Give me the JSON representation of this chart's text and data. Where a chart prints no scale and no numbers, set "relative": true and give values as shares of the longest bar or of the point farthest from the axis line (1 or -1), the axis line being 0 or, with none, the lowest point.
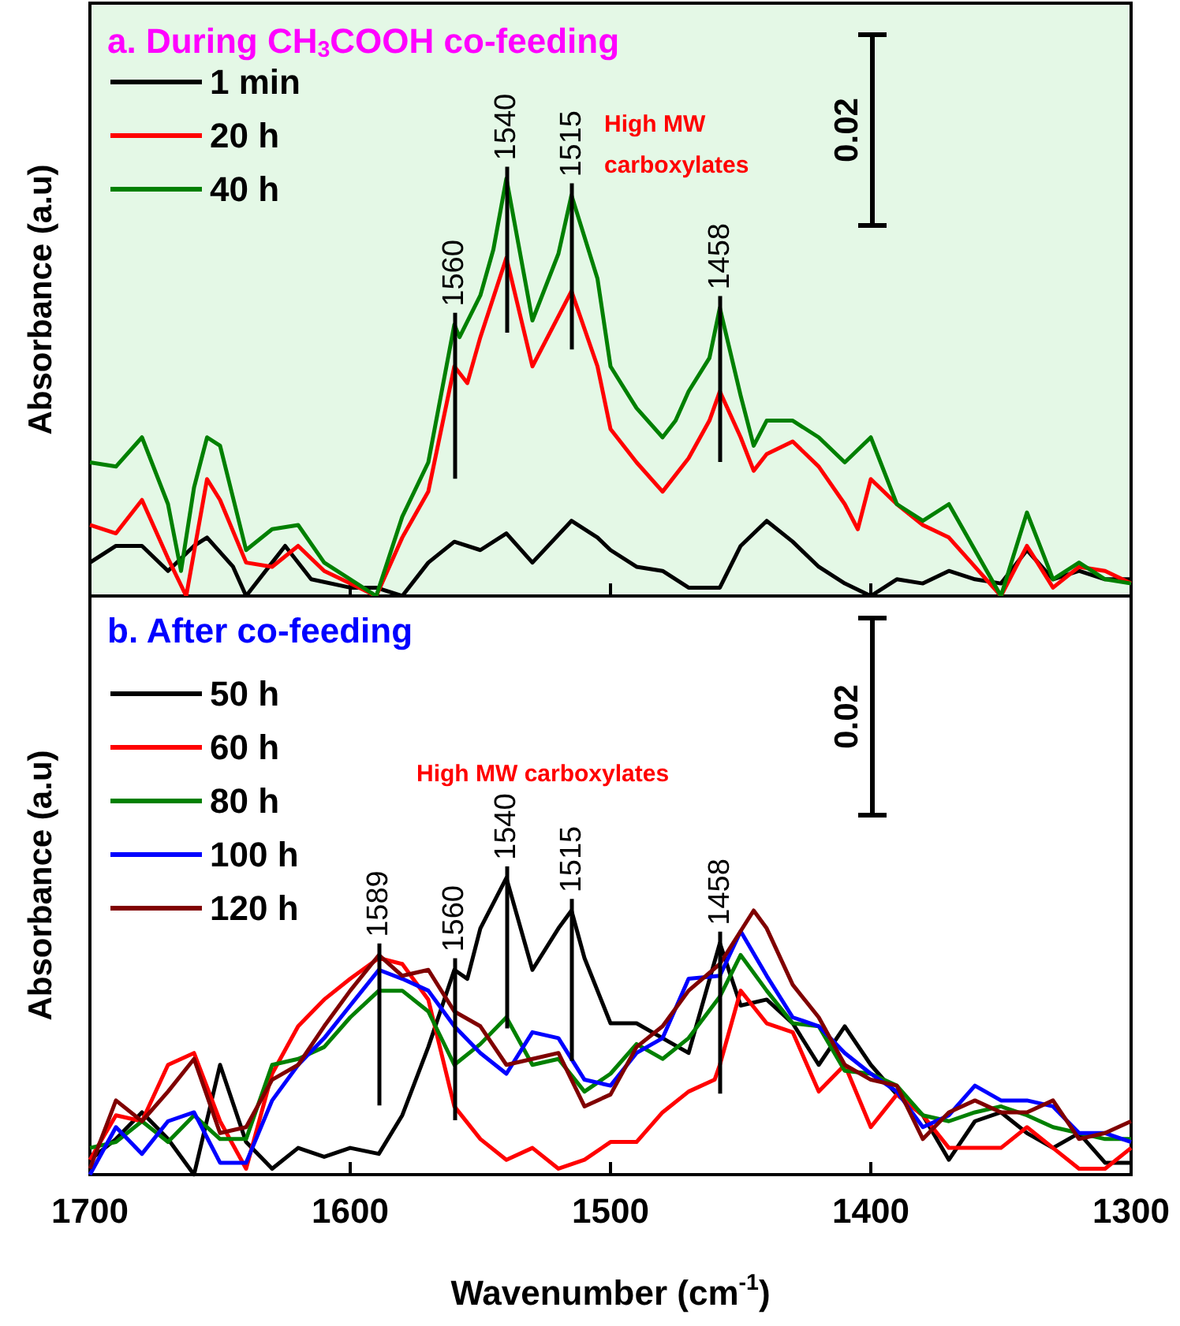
{
  "chart_data": [
    {
      "type": "line",
      "title": "a. During CH$_{3}$COOH co-feeding",
      "ylabel": "Absorbance (a.u)",
      "relative": true,
      "xlim": [
        1700,
        1300
      ],
      "xticks": [
        1700,
        1600,
        1500,
        1400,
        1300
      ],
      "tick_labels": false,
      "legend": "top left",
      "marker": "none",
      "grid": false,
      "series": [
        {
          "name": "1 min",
          "color": "#000000",
          "x": [
            1700,
            1690,
            1680,
            1670,
            1660,
            1655,
            1645,
            1640,
            1630,
            1625,
            1615,
            1600,
            1590,
            1580,
            1570,
            1560,
            1550,
            1540,
            1530,
            1515,
            1505,
            1500,
            1490,
            1480,
            1470,
            1458,
            1450,
            1440,
            1430,
            1420,
            1410,
            1400,
            1390,
            1380,
            1370,
            1360,
            1350,
            1340,
            1330,
            1320,
            1310,
            1300
          ],
          "values": [
            0.08,
            0.12,
            0.12,
            0.06,
            0.12,
            0.14,
            0.07,
            0,
            0.08,
            0.12,
            0.04,
            0.02,
            0.02,
            0,
            0.08,
            0.13,
            0.11,
            0.15,
            0.08,
            0.18,
            0.14,
            0.11,
            0.07,
            0.06,
            0.02,
            0.02,
            0.12,
            0.18,
            0.13,
            0.07,
            0.03,
            0,
            0.04,
            0.03,
            0.06,
            0.04,
            0.03,
            0.11,
            0.04,
            0.06,
            0.04,
            0.04
          ]
        },
        {
          "name": "20 h",
          "color": "#ff0000",
          "x": [
            1700,
            1690,
            1680,
            1670,
            1663,
            1655,
            1650,
            1640,
            1630,
            1620,
            1610,
            1600,
            1590,
            1580,
            1570,
            1560,
            1555,
            1550,
            1540,
            1530,
            1520,
            1515,
            1505,
            1500,
            1490,
            1480,
            1470,
            1462,
            1458,
            1450,
            1445,
            1440,
            1430,
            1420,
            1410,
            1405,
            1400,
            1390,
            1380,
            1370,
            1360,
            1350,
            1340,
            1330,
            1320,
            1310,
            1300
          ],
          "values": [
            0.17,
            0.15,
            0.23,
            0.09,
            0,
            0.28,
            0.23,
            0.08,
            0.07,
            0.12,
            0.06,
            0.03,
            0,
            0.14,
            0.25,
            0.55,
            0.51,
            0.62,
            0.81,
            0.55,
            0.67,
            0.73,
            0.55,
            0.4,
            0.32,
            0.25,
            0.33,
            0.42,
            0.49,
            0.38,
            0.3,
            0.34,
            0.37,
            0.31,
            0.22,
            0.16,
            0.28,
            0.22,
            0.17,
            0.14,
            0.07,
            0,
            0.12,
            0.02,
            0.07,
            0.06,
            0.03
          ]
        },
        {
          "name": "40 h",
          "color": "#008000",
          "x": [
            1700,
            1690,
            1680,
            1670,
            1665,
            1660,
            1655,
            1650,
            1640,
            1630,
            1620,
            1610,
            1600,
            1590,
            1580,
            1570,
            1560,
            1558,
            1550,
            1545,
            1540,
            1530,
            1520,
            1515,
            1505,
            1500,
            1490,
            1480,
            1475,
            1470,
            1462,
            1458,
            1450,
            1445,
            1440,
            1430,
            1420,
            1410,
            1400,
            1390,
            1380,
            1370,
            1360,
            1350,
            1340,
            1330,
            1320,
            1310,
            1300
          ],
          "values": [
            0.32,
            0.31,
            0.38,
            0.22,
            0.06,
            0.26,
            0.38,
            0.36,
            0.11,
            0.16,
            0.17,
            0.08,
            0.04,
            0,
            0.19,
            0.32,
            0.65,
            0.62,
            0.72,
            0.83,
            1,
            0.66,
            0.82,
            0.96,
            0.76,
            0.55,
            0.45,
            0.38,
            0.42,
            0.49,
            0.57,
            0.69,
            0.48,
            0.36,
            0.42,
            0.42,
            0.38,
            0.32,
            0.38,
            0.22,
            0.18,
            0.22,
            0.11,
            0,
            0.2,
            0.04,
            0.08,
            0.04,
            0.03
          ]
        }
      ],
      "annotations": [
        {
          "text": "1560",
          "x": 1560,
          "y": 0.65
        },
        {
          "text": "1540",
          "x": 1540,
          "y": 1.0
        },
        {
          "text": "1515",
          "x": 1515,
          "y": 0.96
        },
        {
          "text": "1458",
          "x": 1458,
          "y": 0.69
        },
        "High MW carboxylates",
        "0.02"
      ]
    },
    {
      "type": "line",
      "title": "b. After co-feeding",
      "ylabel": "Absorbance (a.u)",
      "xlabel": "Wavenumber (cm$^{-1}$)",
      "relative": true,
      "xlim": [
        1700,
        1300
      ],
      "xticks": [
        1700,
        1600,
        1500,
        1400,
        1300
      ],
      "legend": "top left",
      "marker": "none",
      "grid": false,
      "series": [
        {
          "name": "50 h",
          "color": "#000000",
          "x": [
            1700,
            1690,
            1680,
            1670,
            1660,
            1650,
            1640,
            1630,
            1620,
            1610,
            1600,
            1589,
            1580,
            1570,
            1560,
            1555,
            1550,
            1540,
            1530,
            1520,
            1515,
            1510,
            1500,
            1490,
            1480,
            1470,
            1458,
            1450,
            1440,
            1430,
            1420,
            1410,
            1400,
            1390,
            1380,
            1370,
            1360,
            1350,
            1340,
            1330,
            1320,
            1310,
            1300
          ],
          "values": [
            0.05,
            0.12,
            0.21,
            0.12,
            0,
            0.37,
            0.11,
            0.02,
            0.09,
            0.06,
            0.09,
            0.07,
            0.2,
            0.43,
            0.69,
            0.66,
            0.83,
            1,
            0.69,
            0.83,
            0.89,
            0.73,
            0.51,
            0.51,
            0.46,
            0.41,
            0.78,
            0.57,
            0.59,
            0.51,
            0.37,
            0.5,
            0.37,
            0.27,
            0.2,
            0.05,
            0.18,
            0.21,
            0.14,
            0.09,
            0.14,
            0.04,
            0.04
          ]
        },
        {
          "name": "60 h",
          "color": "#ff0000",
          "x": [
            1700,
            1690,
            1680,
            1670,
            1660,
            1650,
            1640,
            1630,
            1620,
            1610,
            1600,
            1589,
            1580,
            1570,
            1560,
            1550,
            1540,
            1530,
            1520,
            1510,
            1500,
            1490,
            1480,
            1470,
            1460,
            1458,
            1450,
            1440,
            1430,
            1420,
            1410,
            1400,
            1390,
            1380,
            1370,
            1360,
            1350,
            1340,
            1330,
            1320,
            1310,
            1300
          ],
          "values": [
            0.05,
            0.2,
            0.18,
            0.37,
            0.41,
            0.18,
            0.02,
            0.34,
            0.5,
            0.59,
            0.66,
            0.73,
            0.71,
            0.59,
            0.23,
            0.12,
            0.05,
            0.09,
            0.02,
            0.05,
            0.11,
            0.11,
            0.21,
            0.28,
            0.32,
            0.37,
            0.62,
            0.51,
            0.48,
            0.28,
            0.37,
            0.16,
            0.27,
            0.2,
            0.09,
            0.09,
            0.09,
            0.16,
            0.09,
            0.02,
            0.02,
            0.09
          ]
        },
        {
          "name": "80 h",
          "color": "#008000",
          "x": [
            1700,
            1690,
            1680,
            1670,
            1660,
            1650,
            1640,
            1630,
            1620,
            1610,
            1600,
            1589,
            1580,
            1570,
            1560,
            1550,
            1540,
            1530,
            1520,
            1510,
            1500,
            1490,
            1480,
            1470,
            1458,
            1450,
            1440,
            1430,
            1420,
            1410,
            1400,
            1390,
            1380,
            1370,
            1360,
            1350,
            1340,
            1330,
            1320,
            1310,
            1300
          ],
          "values": [
            0.09,
            0.11,
            0.18,
            0.11,
            0.2,
            0.12,
            0.12,
            0.37,
            0.39,
            0.43,
            0.53,
            0.62,
            0.62,
            0.55,
            0.37,
            0.44,
            0.53,
            0.37,
            0.39,
            0.28,
            0.34,
            0.44,
            0.39,
            0.46,
            0.6,
            0.74,
            0.62,
            0.51,
            0.5,
            0.35,
            0.34,
            0.3,
            0.2,
            0.18,
            0.21,
            0.23,
            0.2,
            0.16,
            0.14,
            0.12,
            0.12
          ]
        },
        {
          "name": "100 h",
          "color": "#0000ff",
          "x": [
            1700,
            1690,
            1680,
            1670,
            1660,
            1650,
            1640,
            1630,
            1620,
            1610,
            1600,
            1589,
            1580,
            1570,
            1560,
            1550,
            1540,
            1530,
            1520,
            1510,
            1500,
            1490,
            1480,
            1470,
            1458,
            1450,
            1440,
            1430,
            1420,
            1410,
            1400,
            1390,
            1380,
            1370,
            1360,
            1350,
            1340,
            1330,
            1320,
            1310,
            1300
          ],
          "values": [
            0,
            0.16,
            0.07,
            0.18,
            0.21,
            0.04,
            0.04,
            0.25,
            0.37,
            0.46,
            0.57,
            0.69,
            0.66,
            0.62,
            0.5,
            0.41,
            0.34,
            0.48,
            0.46,
            0.32,
            0.3,
            0.41,
            0.46,
            0.66,
            0.67,
            0.82,
            0.67,
            0.53,
            0.5,
            0.41,
            0.34,
            0.28,
            0.16,
            0.2,
            0.3,
            0.25,
            0.25,
            0.23,
            0.14,
            0.14,
            0.11
          ]
        },
        {
          "name": "120 h",
          "color": "#800000",
          "x": [
            1700,
            1690,
            1680,
            1670,
            1660,
            1650,
            1640,
            1630,
            1620,
            1610,
            1600,
            1589,
            1580,
            1570,
            1560,
            1550,
            1540,
            1530,
            1520,
            1510,
            1500,
            1490,
            1480,
            1470,
            1458,
            1445,
            1440,
            1430,
            1420,
            1410,
            1400,
            1390,
            1380,
            1370,
            1360,
            1350,
            1340,
            1330,
            1320,
            1310,
            1300
          ],
          "values": [
            0.02,
            0.25,
            0.18,
            0.28,
            0.39,
            0.14,
            0.16,
            0.32,
            0.37,
            0.5,
            0.62,
            0.74,
            0.67,
            0.69,
            0.55,
            0.5,
            0.37,
            0.39,
            0.41,
            0.23,
            0.27,
            0.43,
            0.5,
            0.62,
            0.71,
            0.89,
            0.83,
            0.64,
            0.53,
            0.37,
            0.32,
            0.3,
            0.12,
            0.21,
            0.25,
            0.21,
            0.21,
            0.25,
            0.12,
            0.14,
            0.18
          ]
        }
      ],
      "annotations": [
        {
          "text": "1589",
          "x": 1589,
          "y": 0.74
        },
        {
          "text": "1560",
          "x": 1560,
          "y": 0.69
        },
        {
          "text": "1540",
          "x": 1540,
          "y": 1.0
        },
        {
          "text": "1515",
          "x": 1515,
          "y": 0.89
        },
        {
          "text": "1458",
          "x": 1458,
          "y": 0.78
        },
        "High MW carboxylates",
        "0.02"
      ]
    }
  ]
}
